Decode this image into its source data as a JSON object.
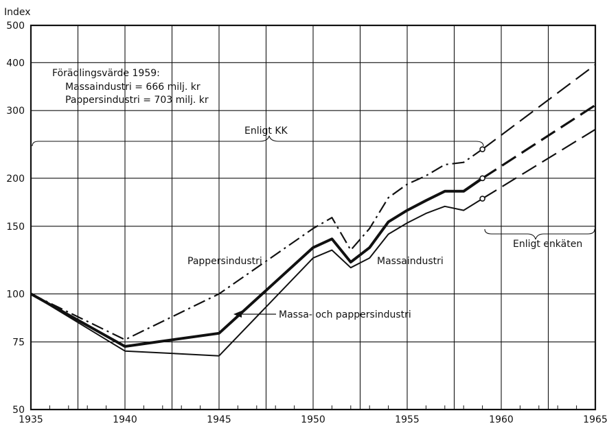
{
  "chart_data": {
    "type": "line",
    "ylabel": "Index",
    "yscale": "log",
    "xlim": [
      1935,
      1965
    ],
    "ylim": [
      50,
      500
    ],
    "x_ticks": [
      "1935",
      "1940",
      "1945",
      "1950",
      "1955",
      "1960",
      "1965"
    ],
    "y_ticks": [
      "50",
      "75",
      "100",
      "150",
      "200",
      "300",
      "400",
      "500"
    ],
    "grid": true,
    "annotations": {
      "info_title": "Förädlingsvärde 1959:",
      "info_line1": "Massaindustri = 666 milj. kr",
      "info_line2": "Pappersindustri = 703 milj. kr",
      "enligt_kk": "Enligt KK",
      "enligt_enkaten": "Enligt enkäten"
    },
    "series": [
      {
        "name": "Pappersindustri",
        "style": "dash-dot",
        "x": [
          1935,
          1940,
          1945,
          1950,
          1951,
          1952,
          1953,
          1954,
          1955,
          1956,
          1957,
          1958,
          1959
        ],
        "y": [
          100,
          76,
          100,
          148,
          158,
          130,
          148,
          178,
          193,
          203,
          217,
          220,
          238
        ],
        "projection": {
          "x": [
            1959,
            1965
          ],
          "y": [
            238,
            395
          ]
        }
      },
      {
        "name": "Massa- och pappersindustri",
        "style": "thick",
        "x": [
          1935,
          1940,
          1945,
          1950,
          1951,
          1952,
          1953,
          1954,
          1955,
          1956,
          1957,
          1958,
          1959
        ],
        "y": [
          100,
          73,
          79,
          132,
          139,
          121,
          132,
          154,
          165,
          175,
          185,
          185,
          200
        ],
        "projection": {
          "x": [
            1959,
            1965
          ],
          "y": [
            200,
            310
          ]
        }
      },
      {
        "name": "Massaindustri",
        "style": "solid",
        "x": [
          1935,
          1940,
          1945,
          1950,
          1951,
          1952,
          1953,
          1954,
          1955,
          1956,
          1957,
          1958,
          1959
        ],
        "y": [
          100,
          71,
          69,
          124,
          130,
          117,
          124,
          143,
          153,
          162,
          169,
          165,
          177
        ],
        "projection": {
          "x": [
            1959,
            1965
          ],
          "y": [
            177,
            268
          ]
        }
      }
    ]
  }
}
